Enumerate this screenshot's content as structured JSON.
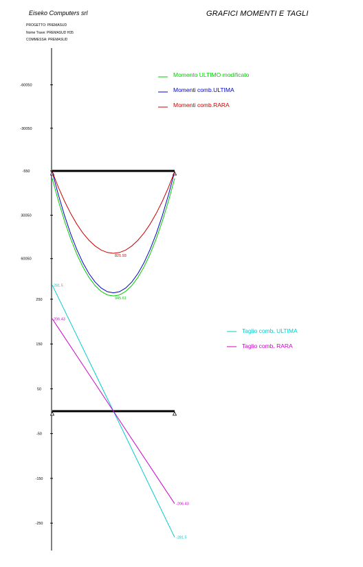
{
  "header": {
    "company": "Eiseko Computers srl",
    "title": "GRAFICI MOMENTI E TAGLI",
    "meta": [
      "PROGETTO:  PREMASUD",
      "Nome Trave: PREMASUD H35",
      "COMMESSA: PREMASUD"
    ]
  },
  "chart_data": [
    {
      "type": "line",
      "title": "",
      "xlabel": "",
      "ylabel": "",
      "y_ticks": [
        -60050,
        -30050,
        -550,
        30050,
        60050
      ],
      "tick_labels": [
        "-60050",
        "-30050",
        "-550",
        "30050",
        "60050"
      ],
      "y_inverted": true,
      "x": [
        0,
        0.05,
        0.1,
        0.15,
        0.2,
        0.25,
        0.3,
        0.35,
        0.4,
        0.45,
        0.5,
        0.55,
        0.6,
        0.65,
        0.7,
        0.75,
        0.8,
        0.85,
        0.9,
        0.95,
        1
      ],
      "series": [
        {
          "name": "Momento ULTIMO modificato",
          "color": "#00cc00",
          "values": [
            4650,
            20150,
            34020,
            46240,
            56810,
            65750,
            73040,
            78700,
            82720,
            85110,
            85850,
            85110,
            82720,
            78700,
            73040,
            65750,
            56810,
            46240,
            34020,
            20150,
            4650
          ]
        },
        {
          "name": "Momenti comb.ULTIMA",
          "color": "#0000cc",
          "values": [
            0,
            15950,
            30190,
            42760,
            53650,
            62850,
            70370,
            76220,
            80390,
            82890,
            83700,
            82890,
            80390,
            76220,
            70370,
            62850,
            53650,
            42760,
            30190,
            15950,
            0
          ]
        },
        {
          "name": "Momenti comb.RARA",
          "color": "#cc0000",
          "values": [
            0,
            10740,
            20310,
            28770,
            36120,
            42330,
            47370,
            51300,
            54140,
            55830,
            56370,
            55830,
            54140,
            51300,
            47370,
            42330,
            36120,
            28770,
            20310,
            10740,
            0
          ]
        }
      ],
      "annotations": [
        {
          "text": "821.93",
          "x": 0.5,
          "y": 56370,
          "color": "#cc0000"
        },
        {
          "text": "945.61",
          "x": 0.5,
          "y": 85850,
          "color": "#00cc00"
        }
      ],
      "legend_position": "top-right"
    },
    {
      "type": "line",
      "title": "",
      "xlabel": "",
      "ylabel": "",
      "y_ticks": [
        250,
        150,
        50,
        -50,
        -150,
        -250
      ],
      "tick_labels": [
        "250",
        "150",
        "50",
        "-50",
        "-150",
        "-250"
      ],
      "x": [
        0,
        1
      ],
      "series": [
        {
          "name": "Taglio comb. ULTIMA",
          "color": "#00cccc",
          "values": [
            281.5,
            -281.5
          ]
        },
        {
          "name": "Taglio comb. RARA",
          "color": "#cc00cc",
          "values": [
            206.43,
            -206.43
          ]
        }
      ],
      "annotations": [
        {
          "text": "281.5",
          "x": 0,
          "y": 281.5,
          "color": "#00cccc"
        },
        {
          "text": "206.43",
          "x": 0,
          "y": 206.43,
          "color": "#cc00cc"
        },
        {
          "text": "-206.43",
          "x": 1,
          "y": -206.43,
          "color": "#cc00cc"
        },
        {
          "text": "-281.5",
          "x": 1,
          "y": -281.5,
          "color": "#00cccc"
        }
      ],
      "legend_position": "right"
    }
  ]
}
